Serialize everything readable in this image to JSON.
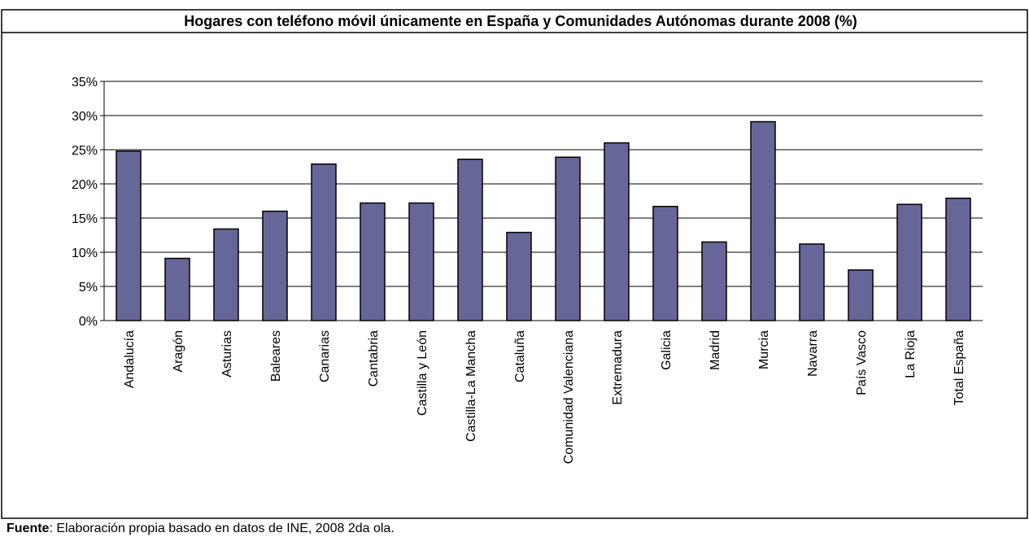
{
  "chart_data": {
    "type": "bar",
    "title": "Hogares con teléfono móvil únicamente en España y Comunidades Autónomas durante 2008 (%)",
    "categories": [
      "Andalucía",
      "Aragón",
      "Asturias",
      "Baleares",
      "Canarias",
      "Cantabria",
      "Castilla y León",
      "Castilla-La Mancha",
      "Cataluña",
      "Comunidad Valenciana",
      "Extremadura",
      "Galicia",
      "Madrid",
      "Murcia",
      "Navarra",
      "País Vasco",
      "La Rioja",
      "Total España"
    ],
    "values": [
      24.8,
      9.1,
      13.4,
      16,
      22.9,
      17.2,
      17.2,
      23.6,
      12.9,
      23.9,
      26,
      16.7,
      11.5,
      29.1,
      11.2,
      7.4,
      17,
      17.9
    ],
    "color": "#666699",
    "ylim": [
      0,
      35
    ],
    "yticks": [
      {
        "value": 0,
        "label": "0%"
      },
      {
        "value": 5,
        "label": "5%"
      },
      {
        "value": 10,
        "label": "10%"
      },
      {
        "value": 15,
        "label": "15%"
      },
      {
        "value": 20,
        "label": "20%"
      },
      {
        "value": 25,
        "label": "25%"
      },
      {
        "value": 30,
        "label": "30%"
      },
      {
        "value": 35,
        "label": "35%"
      }
    ],
    "grid": true,
    "source_label": "Fuente",
    "source_text": ": Elaboración propia basado en datos de INE, 2008 2da ola."
  }
}
